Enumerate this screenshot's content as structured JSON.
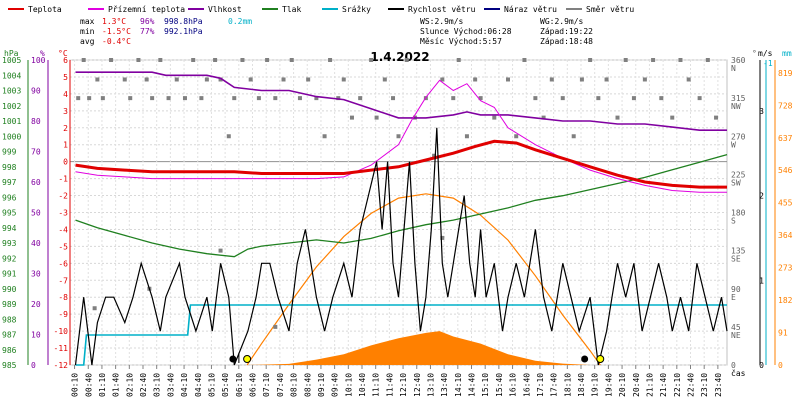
{
  "chart_data": {
    "type": "line",
    "title": "1.4.2022",
    "xlabel": "čas",
    "legend": [
      {
        "name": "Teplota",
        "color": "#e00000"
      },
      {
        "name": "Přízemní teplota",
        "color": "#e000e0"
      },
      {
        "name": "Vlhkost",
        "color": "#8000a0"
      },
      {
        "name": "Tlak",
        "color": "#208020"
      },
      {
        "name": "Srážky",
        "color": "#00b0c8"
      },
      {
        "name": "Rychlost větru",
        "color": "#000000"
      },
      {
        "name": "Náraz větru",
        "color": "#000080"
      },
      {
        "name": "Směr větru",
        "color": "#808080"
      }
    ],
    "stats": [
      {
        "label": "max",
        "temp": "1.3°C",
        "hum": "96%",
        "press": "998.8hPa",
        "rain": "0.2mm"
      },
      {
        "label": "min",
        "temp": "-1.5°C",
        "hum": "77%",
        "press": "992.1hPa",
        "rain": ""
      },
      {
        "label": "avg",
        "temp": "-0.4°C",
        "hum": "",
        "press": "",
        "rain": ""
      }
    ],
    "info": [
      {
        "a": "WS:2.9m/s",
        "b": "WG:2.9m/s"
      },
      {
        "a": "Slunce Východ:06:28",
        "b": "Západ:19:22"
      },
      {
        "a": "Měsíc  Východ:5:57",
        "b": "Západ:18:48"
      }
    ],
    "axis_headers": {
      "press": "hPa",
      "hum": "%",
      "temp": "°C",
      "dir": "°",
      "wind": "m/s",
      "rain": "mm"
    },
    "axes": {
      "press": {
        "ticks": [
          "985",
          "986",
          "987",
          "988",
          "989",
          "990",
          "991",
          "992",
          "993",
          "994",
          "995",
          "996",
          "997",
          "998",
          "999",
          "1000",
          "1001",
          "1002",
          "1003",
          "1004",
          "1005"
        ]
      },
      "hum": {
        "ticks": [
          "0",
          "10",
          "20",
          "30",
          "40",
          "50",
          "60",
          "70",
          "80",
          "90",
          "100"
        ]
      },
      "temp": {
        "ticks": [
          "-12",
          "-11",
          "-10",
          "-9",
          "-8",
          "-7",
          "-6",
          "-5",
          "-4",
          "-3",
          "-2",
          "-1",
          "0",
          "1",
          "2",
          "3",
          "4",
          "5",
          "6"
        ]
      },
      "dir": {
        "ticks": [
          "0",
          "45 NE",
          "90 E",
          "135 SE",
          "180 S",
          "225 SW",
          "270 W",
          "315 NW",
          "360 N"
        ]
      },
      "wind": {
        "ticks": [
          "0",
          "1",
          "2",
          "3"
        ]
      },
      "solar": {
        "ticks": [
          "0",
          "91",
          "182",
          "273",
          "364",
          "455",
          "546",
          "637",
          "728",
          "819"
        ]
      }
    },
    "time_ticks": [
      "00:10",
      "00:40",
      "01:10",
      "01:40",
      "02:10",
      "02:40",
      "03:10",
      "03:40",
      "04:10",
      "04:40",
      "05:10",
      "05:40",
      "06:10",
      "06:40",
      "07:10",
      "07:40",
      "08:10",
      "08:40",
      "09:10",
      "09:40",
      "10:10",
      "10:40",
      "11:10",
      "11:40",
      "12:10",
      "12:40",
      "13:10",
      "13:40",
      "14:10",
      "14:40",
      "15:10",
      "15:40",
      "16:10",
      "16:40",
      "17:10",
      "17:40",
      "18:10",
      "18:40",
      "19:10",
      "19:40",
      "20:10",
      "20:40",
      "21:10",
      "21:40",
      "22:10",
      "22:40",
      "23:10",
      "23:40"
    ],
    "series": {
      "temperature": [
        [
          0.2,
          -0.2
        ],
        [
          1,
          -0.4
        ],
        [
          2,
          -0.5
        ],
        [
          3,
          -0.6
        ],
        [
          4,
          -0.6
        ],
        [
          5,
          -0.6
        ],
        [
          6,
          -0.6
        ],
        [
          7,
          -0.7
        ],
        [
          8,
          -0.7
        ],
        [
          9,
          -0.7
        ],
        [
          10,
          -0.7
        ],
        [
          11,
          -0.5
        ],
        [
          12,
          -0.3
        ],
        [
          13,
          0.1
        ],
        [
          14,
          0.5
        ],
        [
          14.8,
          0.9
        ],
        [
          15.5,
          1.2
        ],
        [
          16.3,
          1.1
        ],
        [
          17,
          0.7
        ],
        [
          18,
          0.2
        ],
        [
          19,
          -0.3
        ],
        [
          20,
          -0.8
        ],
        [
          21,
          -1.2
        ],
        [
          22,
          -1.4
        ],
        [
          23,
          -1.5
        ],
        [
          24,
          -1.5
        ]
      ],
      "ground_temperature": [
        [
          0.2,
          -0.6
        ],
        [
          1,
          -0.8
        ],
        [
          2,
          -0.9
        ],
        [
          3,
          -1.0
        ],
        [
          4,
          -1.0
        ],
        [
          5,
          -1.0
        ],
        [
          6,
          -1.0
        ],
        [
          7,
          -1.0
        ],
        [
          8,
          -1.0
        ],
        [
          9,
          -1.0
        ],
        [
          10,
          -0.9
        ],
        [
          11,
          -0.2
        ],
        [
          12,
          1.0
        ],
        [
          12.5,
          2.5
        ],
        [
          13,
          3.8
        ],
        [
          13.5,
          4.8
        ],
        [
          14,
          4.2
        ],
        [
          14.5,
          4.6
        ],
        [
          15,
          3.6
        ],
        [
          15.5,
          3.2
        ],
        [
          16,
          2.0
        ],
        [
          17,
          1.0
        ],
        [
          18,
          0.2
        ],
        [
          19,
          -0.5
        ],
        [
          20,
          -1.0
        ],
        [
          21,
          -1.4
        ],
        [
          22,
          -1.7
        ],
        [
          23,
          -1.8
        ],
        [
          24,
          -1.8
        ]
      ],
      "humidity": [
        [
          0.2,
          96
        ],
        [
          1,
          96
        ],
        [
          3,
          96
        ],
        [
          3.5,
          95
        ],
        [
          5,
          95
        ],
        [
          5.5,
          94
        ],
        [
          6,
          91
        ],
        [
          7,
          90
        ],
        [
          8,
          90
        ],
        [
          9,
          88
        ],
        [
          10,
          87
        ],
        [
          11,
          84
        ],
        [
          12,
          81
        ],
        [
          13,
          81
        ],
        [
          14,
          82
        ],
        [
          14.5,
          83
        ],
        [
          15,
          82
        ],
        [
          16,
          82
        ],
        [
          17,
          81
        ],
        [
          18,
          80
        ],
        [
          19,
          80
        ],
        [
          20,
          79
        ],
        [
          21,
          79
        ],
        [
          22,
          78
        ],
        [
          23,
          77
        ],
        [
          24,
          77
        ]
      ],
      "pressure": [
        [
          0.2,
          994.5
        ],
        [
          1,
          994.0
        ],
        [
          2,
          993.5
        ],
        [
          3,
          993.0
        ],
        [
          4,
          992.6
        ],
        [
          5,
          992.3
        ],
        [
          6,
          992.1
        ],
        [
          6.5,
          992.6
        ],
        [
          7,
          992.8
        ],
        [
          8,
          993.0
        ],
        [
          9,
          993.2
        ],
        [
          10,
          993.0
        ],
        [
          11,
          993.3
        ],
        [
          12,
          993.8
        ],
        [
          13,
          994.2
        ],
        [
          14,
          994.5
        ],
        [
          15,
          994.9
        ],
        [
          16,
          995.3
        ],
        [
          17,
          995.8
        ],
        [
          18,
          996.1
        ],
        [
          19,
          996.5
        ],
        [
          20,
          996.9
        ],
        [
          21,
          997.3
        ],
        [
          22,
          997.8
        ],
        [
          23,
          998.3
        ],
        [
          24,
          998.8
        ]
      ],
      "precipitation": [
        [
          0.2,
          0
        ],
        [
          0.5,
          0
        ],
        [
          0.6,
          0.1
        ],
        [
          4.3,
          0.1
        ],
        [
          4.4,
          0.2
        ],
        [
          24,
          0.2
        ]
      ],
      "wind_speed": [
        [
          0.2,
          0
        ],
        [
          0.5,
          0.8
        ],
        [
          0.8,
          0
        ],
        [
          1,
          0.5
        ],
        [
          1.3,
          0.8
        ],
        [
          1.6,
          0.8
        ],
        [
          2,
          0.5
        ],
        [
          2.3,
          0.8
        ],
        [
          2.6,
          1.2
        ],
        [
          3,
          0.8
        ],
        [
          3.3,
          0.4
        ],
        [
          3.5,
          0.8
        ],
        [
          4,
          1.2
        ],
        [
          4.2,
          0.8
        ],
        [
          4.6,
          0.4
        ],
        [
          5,
          0.8
        ],
        [
          5.2,
          0.4
        ],
        [
          5.5,
          1.2
        ],
        [
          5.8,
          0.8
        ],
        [
          6,
          0
        ],
        [
          6.5,
          0.4
        ],
        [
          6.8,
          0.8
        ],
        [
          7,
          1.2
        ],
        [
          7.3,
          1.2
        ],
        [
          7.6,
          0.8
        ],
        [
          8,
          0.4
        ],
        [
          8.3,
          1.2
        ],
        [
          8.6,
          1.6
        ],
        [
          9,
          0.8
        ],
        [
          9.3,
          0.4
        ],
        [
          9.6,
          0.8
        ],
        [
          10,
          1.2
        ],
        [
          10.3,
          0.8
        ],
        [
          10.6,
          1.6
        ],
        [
          10.9,
          2.0
        ],
        [
          11.2,
          2.4
        ],
        [
          11.4,
          1.6
        ],
        [
          11.6,
          2.4
        ],
        [
          11.8,
          1.2
        ],
        [
          12,
          0.8
        ],
        [
          12.2,
          1.6
        ],
        [
          12.4,
          2.4
        ],
        [
          12.6,
          1.2
        ],
        [
          12.8,
          0.4
        ],
        [
          13,
          0.8
        ],
        [
          13.2,
          1.6
        ],
        [
          13.4,
          2.8
        ],
        [
          13.6,
          1.2
        ],
        [
          13.8,
          0.8
        ],
        [
          14,
          1.2
        ],
        [
          14.2,
          1.6
        ],
        [
          14.4,
          2.0
        ],
        [
          14.6,
          1.2
        ],
        [
          14.8,
          0.8
        ],
        [
          15,
          1.6
        ],
        [
          15.2,
          0.8
        ],
        [
          15.5,
          1.2
        ],
        [
          15.8,
          0.4
        ],
        [
          16,
          0.8
        ],
        [
          16.3,
          1.2
        ],
        [
          16.6,
          0.8
        ],
        [
          17,
          1.6
        ],
        [
          17.3,
          0.8
        ],
        [
          17.6,
          0.4
        ],
        [
          18,
          1.2
        ],
        [
          18.3,
          0.8
        ],
        [
          18.6,
          0.4
        ],
        [
          19,
          0.8
        ],
        [
          19.3,
          0
        ],
        [
          19.6,
          0.4
        ],
        [
          19.8,
          0.8
        ],
        [
          20,
          1.2
        ],
        [
          20.3,
          0.8
        ],
        [
          20.6,
          1.2
        ],
        [
          20.9,
          0.4
        ],
        [
          21.2,
          0.8
        ],
        [
          21.5,
          1.2
        ],
        [
          21.8,
          0.8
        ],
        [
          22,
          0.4
        ],
        [
          22.3,
          0.8
        ],
        [
          22.6,
          0.4
        ],
        [
          22.9,
          1.2
        ],
        [
          23.2,
          0.8
        ],
        [
          23.5,
          0.4
        ],
        [
          23.8,
          0.8
        ],
        [
          24,
          0.4
        ]
      ],
      "solar_radiation": [
        [
          6.47,
          0
        ],
        [
          7,
          60
        ],
        [
          8,
          170
        ],
        [
          9,
          275
        ],
        [
          10,
          360
        ],
        [
          11,
          425
        ],
        [
          12,
          468
        ],
        [
          13,
          480
        ],
        [
          14,
          468
        ],
        [
          15,
          420
        ],
        [
          16,
          350
        ],
        [
          17,
          250
        ],
        [
          18,
          140
        ],
        [
          19,
          40
        ],
        [
          19.37,
          0
        ]
      ],
      "measured_radiation": [
        [
          6.5,
          0
        ],
        [
          8,
          3
        ],
        [
          9,
          15
        ],
        [
          10,
          30
        ],
        [
          11,
          55
        ],
        [
          12,
          75
        ],
        [
          13,
          90
        ],
        [
          13.5,
          95
        ],
        [
          14,
          80
        ],
        [
          15,
          60
        ],
        [
          16,
          30
        ],
        [
          17,
          12
        ],
        [
          18,
          4
        ],
        [
          19,
          0
        ]
      ],
      "wind_direction_dots": [
        [
          0.3,
          315
        ],
        [
          0.5,
          360
        ],
        [
          0.7,
          315
        ],
        [
          1,
          337
        ],
        [
          1.2,
          315
        ],
        [
          1.5,
          360
        ],
        [
          2,
          337
        ],
        [
          2.2,
          315
        ],
        [
          2.5,
          360
        ],
        [
          2.8,
          337
        ],
        [
          3,
          315
        ],
        [
          3.3,
          360
        ],
        [
          3.6,
          315
        ],
        [
          3.9,
          337
        ],
        [
          4.2,
          315
        ],
        [
          4.5,
          360
        ],
        [
          4.8,
          315
        ],
        [
          5,
          337
        ],
        [
          5.3,
          360
        ],
        [
          5.5,
          337
        ],
        [
          5.8,
          270
        ],
        [
          6,
          315
        ],
        [
          6.3,
          360
        ],
        [
          6.6,
          337
        ],
        [
          6.9,
          315
        ],
        [
          7.2,
          360
        ],
        [
          7.5,
          315
        ],
        [
          7.8,
          337
        ],
        [
          8.1,
          360
        ],
        [
          8.4,
          315
        ],
        [
          8.7,
          337
        ],
        [
          9,
          315
        ],
        [
          9.3,
          270
        ],
        [
          9.5,
          360
        ],
        [
          9.8,
          315
        ],
        [
          10,
          337
        ],
        [
          10.3,
          292
        ],
        [
          10.6,
          315
        ],
        [
          11,
          360
        ],
        [
          11.2,
          292
        ],
        [
          11.5,
          337
        ],
        [
          11.8,
          315
        ],
        [
          12,
          270
        ],
        [
          12.3,
          360
        ],
        [
          12.6,
          292
        ],
        [
          13,
          315
        ],
        [
          13.3,
          247
        ],
        [
          13.6,
          337
        ],
        [
          14,
          315
        ],
        [
          14.2,
          360
        ],
        [
          14.5,
          270
        ],
        [
          14.8,
          337
        ],
        [
          15,
          315
        ],
        [
          15.5,
          292
        ],
        [
          16,
          337
        ],
        [
          16.3,
          270
        ],
        [
          16.6,
          360
        ],
        [
          17,
          315
        ],
        [
          17.3,
          292
        ],
        [
          17.6,
          337
        ],
        [
          18,
          315
        ],
        [
          18.4,
          270
        ],
        [
          18.7,
          337
        ],
        [
          19,
          360
        ],
        [
          19.3,
          315
        ],
        [
          19.6,
          337
        ],
        [
          20,
          292
        ],
        [
          20.3,
          360
        ],
        [
          20.6,
          315
        ],
        [
          21,
          337
        ],
        [
          21.3,
          360
        ],
        [
          21.6,
          315
        ],
        [
          22,
          292
        ],
        [
          22.3,
          360
        ],
        [
          22.6,
          337
        ],
        [
          23,
          315
        ],
        [
          23.3,
          360
        ],
        [
          23.6,
          292
        ],
        [
          13.6,
          150
        ],
        [
          0.9,
          67
        ],
        [
          2.9,
          90
        ],
        [
          5.5,
          135
        ],
        [
          7.5,
          45
        ]
      ]
    },
    "markers": {
      "sunrise": 6.47,
      "sunset": 19.37,
      "moonrise": 5.95,
      "moonset": 18.8
    }
  }
}
